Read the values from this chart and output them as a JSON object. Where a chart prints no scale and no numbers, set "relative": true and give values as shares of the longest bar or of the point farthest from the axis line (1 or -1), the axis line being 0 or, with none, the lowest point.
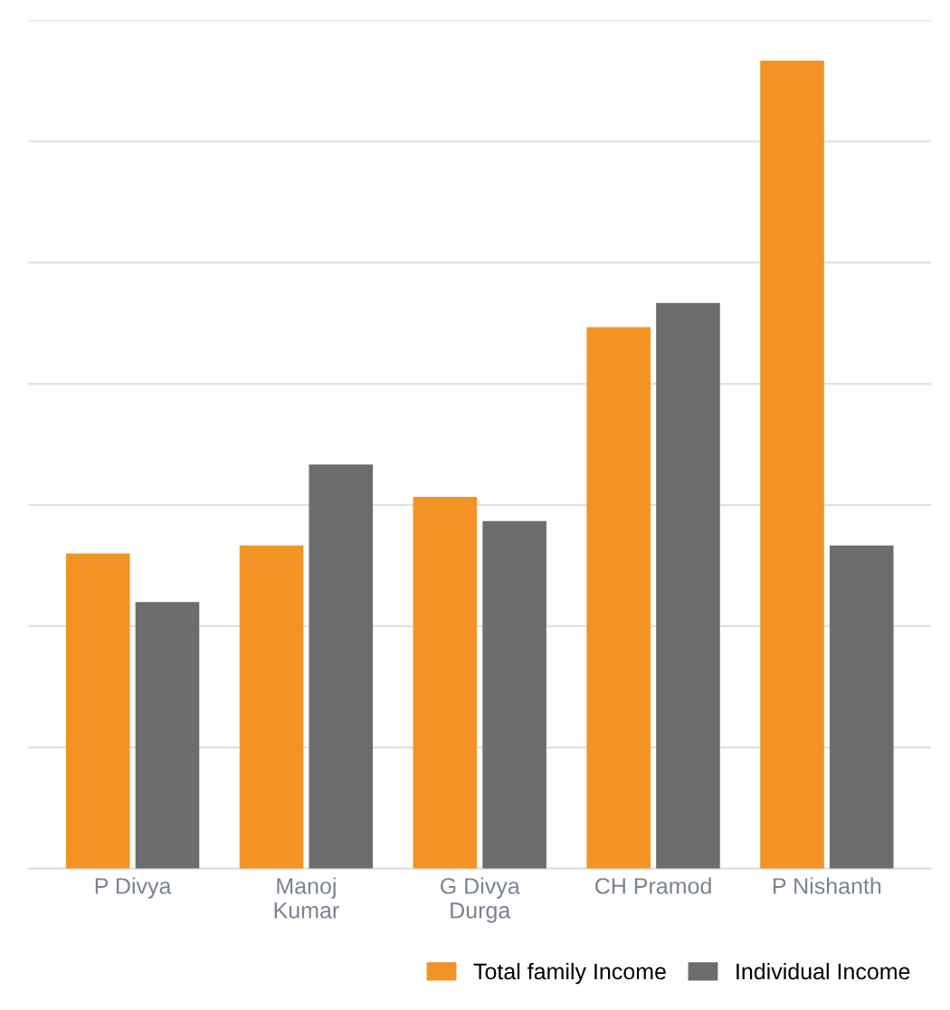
{
  "chart_data": {
    "type": "bar",
    "relative": true,
    "categories": [
      "P Divya",
      "Manoj\nKumar",
      "G Divya\nDurga",
      "CH Pramod",
      "P Nishanth"
    ],
    "series": [
      {
        "name": "Total family Income",
        "color": "#f39325",
        "values": [
          0.39,
          0.4,
          0.46,
          0.67,
          1.0
        ]
      },
      {
        "name": "Individual Income",
        "color": "#6d6e6c",
        "values": [
          0.33,
          0.5,
          0.43,
          0.7,
          0.4
        ]
      }
    ],
    "grid": "y",
    "legend": "bottom right"
  }
}
